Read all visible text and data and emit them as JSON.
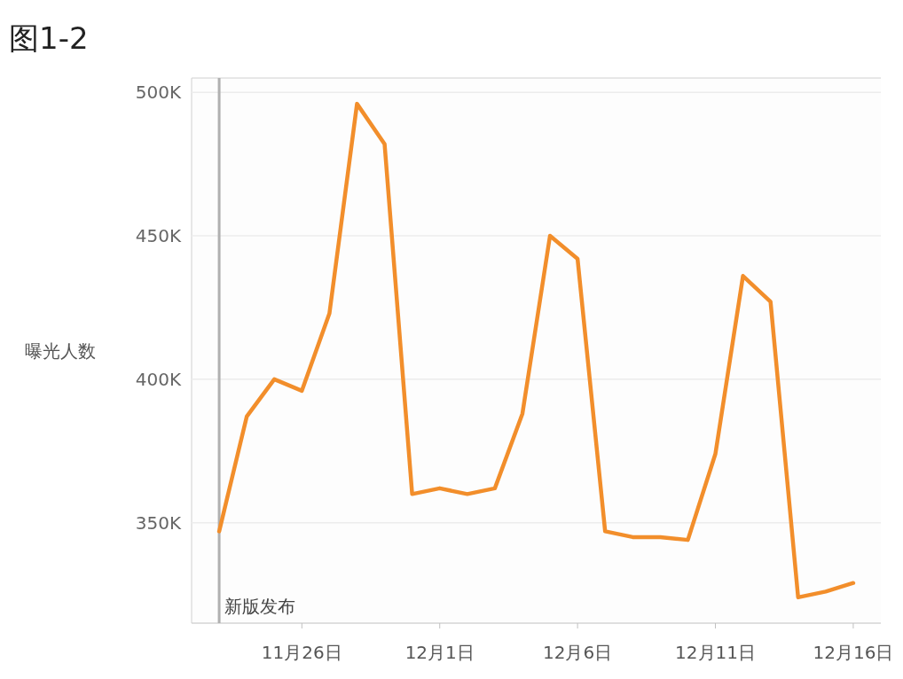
{
  "chart_data": {
    "type": "line",
    "title": "图1-2",
    "ylabel": "曝光人数",
    "x": [
      "--11-23",
      "--11-24",
      "--11-25",
      "--11-26",
      "--11-27",
      "--11-28",
      "--11-29",
      "--11-30",
      "--12-01",
      "--12-02",
      "--12-03",
      "--12-04",
      "--12-05",
      "--12-06",
      "--12-07",
      "--12-08",
      "--12-09",
      "--12-10",
      "--12-11",
      "--12-12",
      "--12-13",
      "--12-14",
      "--12-15",
      "--12-16"
    ],
    "series": [
      {
        "color": "#f28e2b",
        "values": [
          347,
          387,
          400,
          396,
          423,
          496,
          482,
          360,
          362,
          360,
          362,
          388,
          450,
          442,
          347,
          345,
          345,
          344,
          374,
          436,
          427,
          324,
          326,
          329
        ]
      }
    ],
    "xlim": [
      "--11-22",
      "--12-17"
    ],
    "xticks": [
      {
        "value": "--11-26",
        "label": "11月26日"
      },
      {
        "value": "--12-01",
        "label": "12月1日"
      },
      {
        "value": "--12-06",
        "label": "12月6日"
      },
      {
        "value": "--12-11",
        "label": "12月11日"
      },
      {
        "value": "--12-16",
        "label": "12月16日"
      }
    ],
    "ylim": [
      315,
      505
    ],
    "yticks": [
      {
        "value": 350,
        "label": "350K"
      },
      {
        "value": 400,
        "label": "400K"
      },
      {
        "value": 450,
        "label": "450K"
      },
      {
        "value": 500,
        "label": "500K"
      }
    ],
    "grid": "y",
    "marker": "none",
    "line_style": "solid",
    "ref_lines": [
      {
        "axis": "x",
        "value": "--11-23",
        "label": "新版发布",
        "color": "#b0b0b0"
      }
    ]
  }
}
